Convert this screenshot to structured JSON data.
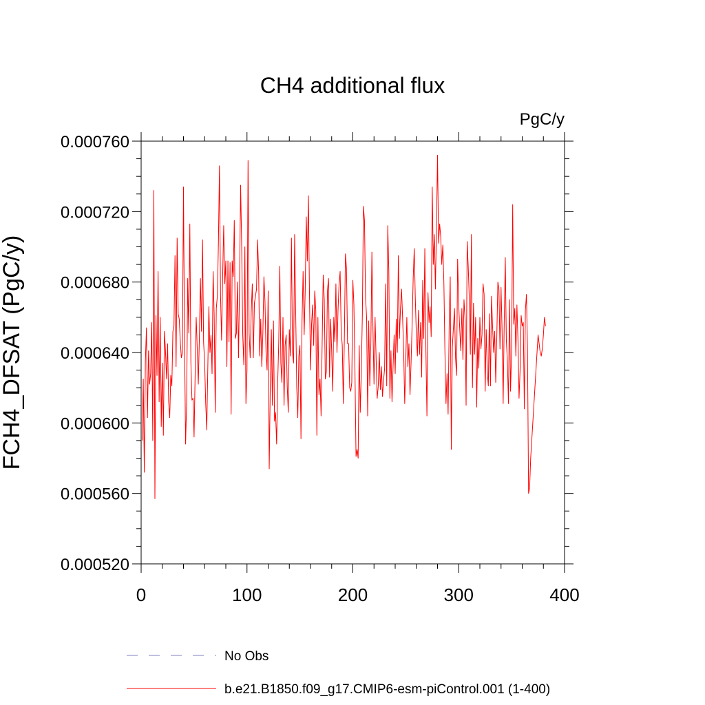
{
  "chart_data": {
    "type": "line",
    "title": "CH4 additional flux",
    "units": "PgC/y",
    "ylabel": "FCH4_DFSAT  (PgC/y)",
    "xlabel": "",
    "xlim": [
      0,
      400
    ],
    "ylim": [
      0.00052,
      0.00076
    ],
    "x_ticks": [
      0,
      100,
      200,
      300,
      400
    ],
    "x_tick_labels": [
      "0",
      "100",
      "200",
      "300",
      "400"
    ],
    "y_ticks": [
      0.00052,
      0.00056,
      0.0006,
      0.00064,
      0.00068,
      0.00072,
      0.00076
    ],
    "y_tick_labels": [
      "0.000520",
      "0.000560",
      "0.000600",
      "0.000640",
      "0.000680",
      "0.000720",
      "0.000760"
    ],
    "grid": false,
    "legend_position": "bottom",
    "series": [
      {
        "name": "No Obs",
        "color": "#8080c0",
        "dash": true,
        "x": [],
        "values": []
      },
      {
        "name": "b.e21.B1850.f09_g17.CMIP6-esm-piControl.001 (1-400)",
        "color": "#ff0000",
        "dash": false,
        "x_start": 1,
        "x_step": 1,
        "values": [
          0.00059,
          0.000625,
          0.000572,
          0.000635,
          0.000654,
          0.000603,
          0.000641,
          0.000622,
          0.000628,
          0.000657,
          0.00059,
          0.000732,
          0.000557,
          0.000661,
          0.000627,
          0.000686,
          0.000612,
          0.00066,
          0.000598,
          0.000634,
          0.000593,
          0.000652,
          0.000641,
          0.000625,
          0.000645,
          0.000612,
          0.000603,
          0.000627,
          0.000621,
          0.000652,
          0.000655,
          0.000695,
          0.000632,
          0.000705,
          0.000662,
          0.000659,
          0.000646,
          0.000637,
          0.00064,
          0.000734,
          0.000646,
          0.000588,
          0.000612,
          0.000682,
          0.000651,
          0.000713,
          0.000634,
          0.000613,
          0.000614,
          0.000592,
          0.000627,
          0.00066,
          0.000642,
          0.000622,
          0.000648,
          0.000682,
          0.000652,
          0.000704,
          0.000646,
          0.000634,
          0.000611,
          0.000596,
          0.000632,
          0.000666,
          0.00064,
          0.00065,
          0.000628,
          0.000686,
          0.000661,
          0.000606,
          0.000665,
          0.000672,
          0.000702,
          0.000746,
          0.000673,
          0.000647,
          0.000683,
          0.000712,
          0.000679,
          0.000692,
          0.000632,
          0.000692,
          0.000646,
          0.000691,
          0.000605,
          0.000692,
          0.000683,
          0.000715,
          0.000648,
          0.000651,
          0.00068,
          0.000637,
          0.000681,
          0.000735,
          0.0007,
          0.00065,
          0.000633,
          0.0007,
          0.000611,
          0.00063,
          0.000749,
          0.000651,
          0.000637,
          0.000663,
          0.000679,
          0.000637,
          0.000668,
          0.000672,
          0.000676,
          0.000704,
          0.000686,
          0.000638,
          0.000659,
          0.000632,
          0.000651,
          0.000683,
          0.000669,
          0.00064,
          0.00063,
          0.000675,
          0.000574,
          0.000621,
          0.000653,
          0.00061,
          0.000658,
          0.000601,
          0.000606,
          0.000588,
          0.000623,
          0.000646,
          0.000689,
          0.000634,
          0.000623,
          0.00066,
          0.00061,
          0.000644,
          0.00065,
          0.000621,
          0.000606,
          0.000653,
          0.000638,
          0.000705,
          0.00064,
          0.000634,
          0.000707,
          0.000663,
          0.00062,
          0.000603,
          0.000638,
          0.000644,
          0.000591,
          0.000658,
          0.000686,
          0.00065,
          0.000675,
          0.000717,
          0.000692,
          0.000729,
          0.000675,
          0.00063,
          0.000656,
          0.000667,
          0.000644,
          0.000675,
          0.000664,
          0.000593,
          0.00066,
          0.000616,
          0.000625,
          0.000604,
          0.000645,
          0.000684,
          0.00067,
          0.000625,
          0.000629,
          0.000675,
          0.000682,
          0.000626,
          0.000659,
          0.000641,
          0.000618,
          0.00066,
          0.000646,
          0.000679,
          0.00064,
          0.000664,
          0.000679,
          0.000686,
          0.000652,
          0.000644,
          0.000611,
          0.000649,
          0.000696,
          0.000688,
          0.000645,
          0.000645,
          0.00062,
          0.000618,
          0.000623,
          0.000681,
          0.000667,
          0.00063,
          0.000581,
          0.000585,
          0.00058,
          0.000644,
          0.000606,
          0.000629,
          0.000662,
          0.000723,
          0.000715,
          0.000671,
          0.00066,
          0.000604,
          0.000658,
          0.000621,
          0.000645,
          0.000697,
          0.000653,
          0.000622,
          0.00066,
          0.000636,
          0.000614,
          0.000621,
          0.00064,
          0.000619,
          0.000632,
          0.000615,
          0.000624,
          0.000631,
          0.000679,
          0.000621,
          0.000712,
          0.000686,
          0.000614,
          0.000641,
          0.000612,
          0.000632,
          0.00065,
          0.000628,
          0.000659,
          0.00064,
          0.000695,
          0.000648,
          0.000665,
          0.000676,
          0.00066,
          0.000641,
          0.000611,
          0.000636,
          0.00066,
          0.000632,
          0.000645,
          0.000616,
          0.000634,
          0.000656,
          0.000682,
          0.000699,
          0.000671,
          0.00065,
          0.000638,
          0.000664,
          0.000639,
          0.000657,
          0.000626,
          0.000681,
          0.000648,
          0.000699,
          0.000642,
          0.000604,
          0.000674,
          0.000657,
          0.000666,
          0.000649,
          0.000734,
          0.00069,
          0.000707,
          0.000676,
          0.000712,
          0.000752,
          0.000702,
          0.000713,
          0.000706,
          0.00069,
          0.000701,
          0.00068,
          0.00064,
          0.000611,
          0.000628,
          0.000605,
          0.000655,
          0.000683,
          0.000585,
          0.000643,
          0.000654,
          0.000665,
          0.000637,
          0.000627,
          0.000693,
          0.000667,
          0.000653,
          0.000641,
          0.000665,
          0.000636,
          0.00067,
          0.000659,
          0.00061,
          0.000703,
          0.000689,
          0.000671,
          0.000639,
          0.000707,
          0.00062,
          0.000668,
          0.000639,
          0.00066,
          0.000609,
          0.000648,
          0.000631,
          0.00066,
          0.000642,
          0.00065,
          0.000679,
          0.000673,
          0.000618,
          0.000653,
          0.000629,
          0.000621,
          0.000662,
          0.000621,
          0.000672,
          0.000655,
          0.00064,
          0.000652,
          0.000623,
          0.000649,
          0.00068,
          0.000676,
          0.000642,
          0.000677,
          0.000652,
          0.000611,
          0.000657,
          0.000694,
          0.000647,
          0.000635,
          0.000611,
          0.00067,
          0.000618,
          0.000642,
          0.000724,
          0.000656,
          0.000665,
          0.000638,
          0.000667,
          0.000647,
          0.000614,
          0.00063,
          0.000661,
          0.000655,
          0.000657,
          0.000608,
          0.000664,
          0.000673,
          0.000641,
          0.00056,
          0.000563,
          0.00058,
          0.00059,
          0.0006,
          0.00061,
          0.00062,
          0.00063,
          0.00064,
          0.00065,
          0.000645,
          0.00064,
          0.000638,
          0.000642,
          0.00065,
          0.00066,
          0.000655
        ]
      }
    ]
  }
}
